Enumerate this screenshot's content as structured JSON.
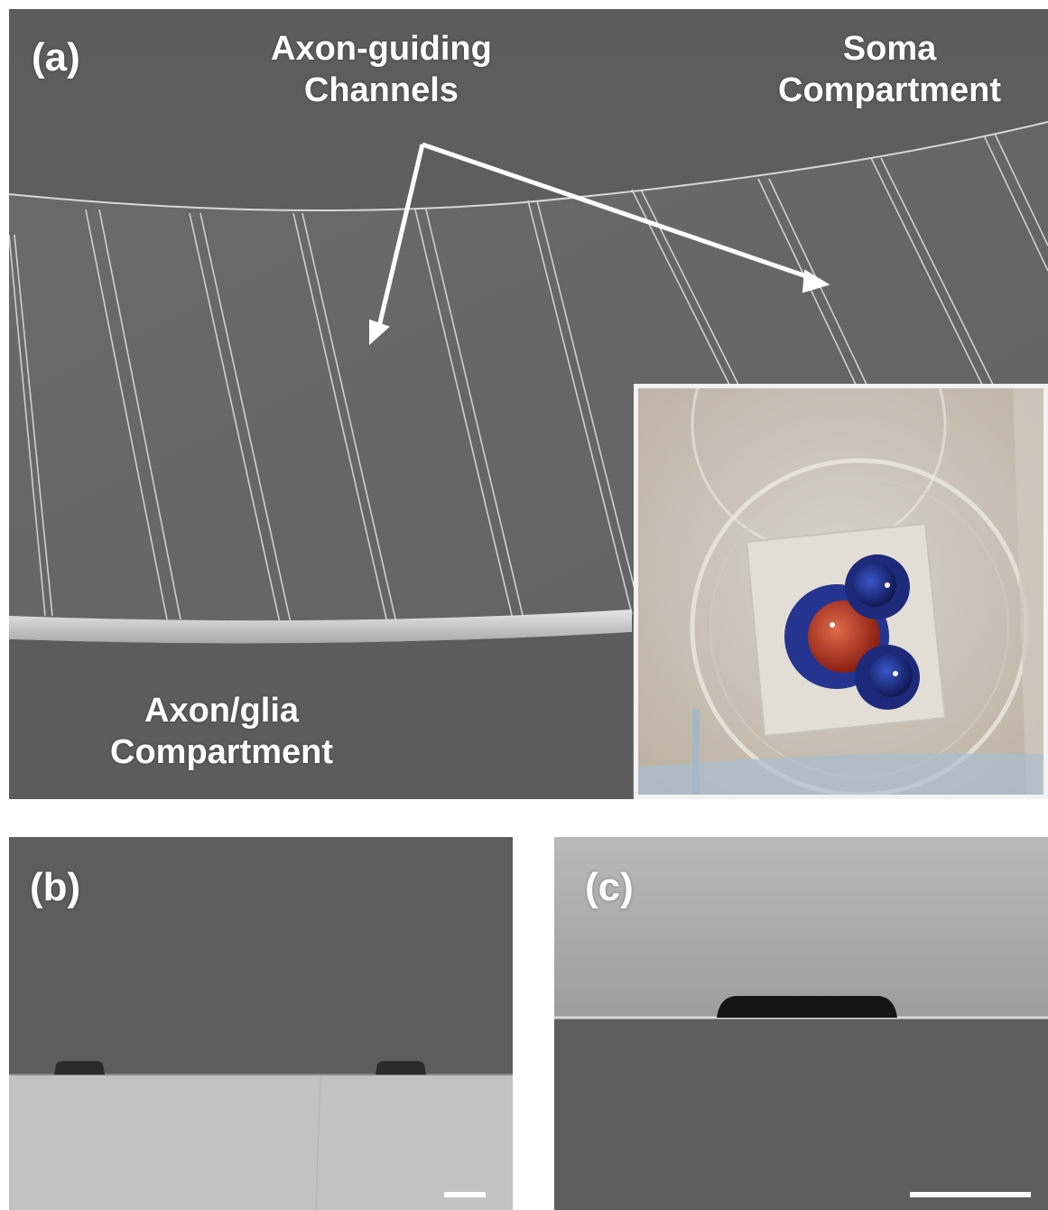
{
  "figure": {
    "panel_a": {
      "letter": "(a)",
      "labels": {
        "channels_line1": "Axon-guiding",
        "channels_line2": "Channels",
        "soma_line1": "Soma",
        "soma_line2": "Compartment",
        "axon_line1": "Axon/glia",
        "axon_line2": "Compartment"
      },
      "inset": "photograph of microfluidic device with red and blue dyed wells in a culture dish"
    },
    "panel_b": {
      "letter": "(b)"
    },
    "panel_c": {
      "letter": "(c)"
    },
    "colors": {
      "sem_dark": "#5a5a5a",
      "sem_mid": "#6a6a6a",
      "sem_light": "#bdbdbd",
      "label_white": "#ffffff",
      "dye_red": "#c23a1e",
      "dye_blue": "#1d2f8f"
    }
  }
}
